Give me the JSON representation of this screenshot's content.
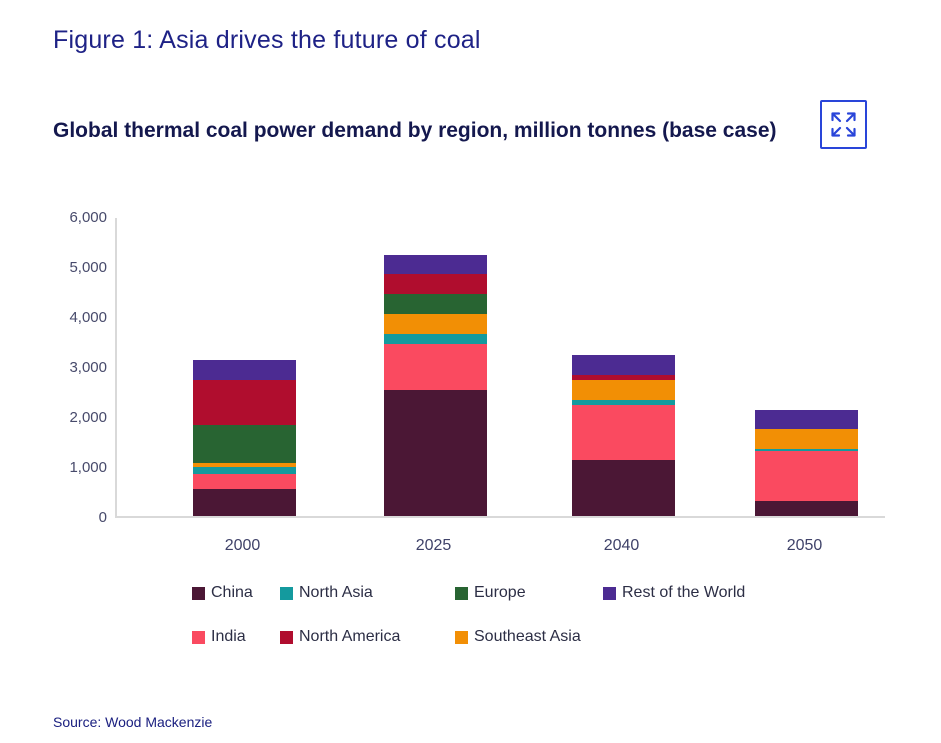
{
  "header": {
    "figure_title": "Figure 1: Asia drives the future of coal",
    "chart_title": "Global thermal coal power demand by region, million tonnes (base case)"
  },
  "controls": {
    "expand_icon": "expand-arrows-icon",
    "icon_color": "#2945d9"
  },
  "chart_data": {
    "type": "bar",
    "stacked": true,
    "title": "Global thermal coal power demand by region, million tonnes (base case)",
    "unit": "million tonnes",
    "categories": [
      "2000",
      "2025",
      "2040",
      "2050"
    ],
    "series": [
      {
        "name": "China",
        "color": "#4b1735",
        "values": [
          550,
          2530,
          1120,
          300
        ]
      },
      {
        "name": "India",
        "color": "#fa4a60",
        "values": [
          300,
          920,
          1100,
          1000
        ]
      },
      {
        "name": "North Asia",
        "color": "#149a9e",
        "values": [
          140,
          200,
          100,
          40
        ]
      },
      {
        "name": "Southeast Asia",
        "color": "#f28f05",
        "values": [
          70,
          400,
          400,
          400
        ]
      },
      {
        "name": "Europe",
        "color": "#286432",
        "values": [
          770,
          400,
          0,
          0
        ]
      },
      {
        "name": "North America",
        "color": "#b00d2e",
        "values": [
          900,
          400,
          100,
          0
        ]
      },
      {
        "name": "Rest of the World",
        "color": "#4c2b92",
        "values": [
          400,
          380,
          400,
          380
        ]
      }
    ],
    "ylim": [
      0,
      6000
    ],
    "yticks": [
      0,
      1000,
      2000,
      3000,
      4000,
      5000,
      6000
    ],
    "ytick_labels": [
      "0",
      "1,000",
      "2,000",
      "3,000",
      "4,000",
      "5,000",
      "6,000"
    ],
    "grid": false,
    "legend_position": "bottom",
    "legend_rows": [
      [
        "China",
        "North Asia",
        "Europe",
        "Rest of the World"
      ],
      [
        "India",
        "North America",
        "Southeast Asia"
      ]
    ]
  },
  "footer": {
    "source": "Source: Wood Mackenzie"
  },
  "colors": {
    "figure_title_text": "#1e2286",
    "chart_title_text": "#14184e",
    "axis_text": "#474a6b",
    "legend_text": "#2c2e45",
    "source_text": "#1b2080",
    "axis_line": "#d9d9d9"
  }
}
